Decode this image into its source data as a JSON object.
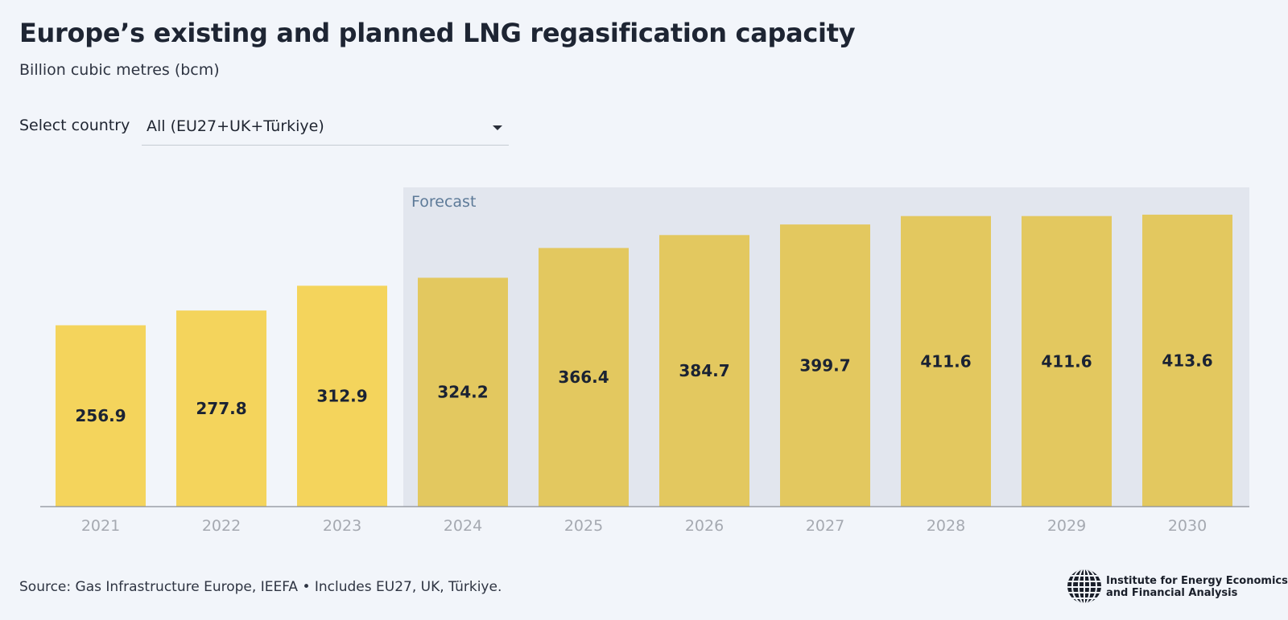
{
  "header": {
    "title": "Europe’s existing and planned LNG regasification capacity",
    "subtitle": "Billion cubic metres (bcm)"
  },
  "filter": {
    "label": "Select country",
    "selected": "All (EU27+UK+Türkiye)"
  },
  "chart_data": {
    "type": "bar",
    "categories": [
      "2021",
      "2022",
      "2023",
      "2024",
      "2025",
      "2026",
      "2027",
      "2028",
      "2029",
      "2030"
    ],
    "values": [
      256.9,
      277.8,
      312.9,
      324.2,
      366.4,
      384.7,
      399.7,
      411.6,
      411.6,
      413.6
    ],
    "value_labels": [
      "256.9",
      "277.8",
      "312.9",
      "324.2",
      "366.4",
      "384.7",
      "399.7",
      "411.6",
      "411.6",
      "413.6"
    ],
    "ylim": [
      0,
      450
    ],
    "forecast": {
      "label": "Forecast",
      "start": "2024",
      "end": "2030"
    },
    "colors": {
      "actual": "#f4d45c",
      "forecast": "#e3c85f",
      "forecast_band": "#e2e6ee",
      "axis": "#8a8f99",
      "tick": "#a5a9b1",
      "label": "#1b2333",
      "band_label": "#5d7a98"
    },
    "grid": false,
    "legend": "none"
  },
  "footer": {
    "source": "Source: Gas Infrastructure Europe, IEEFA • Includes EU27, UK, Türkiye.",
    "logo_line1": "Institute for Energy Economics",
    "logo_line2": "and Financial Analysis",
    "logo_icon": "globe-icon"
  }
}
